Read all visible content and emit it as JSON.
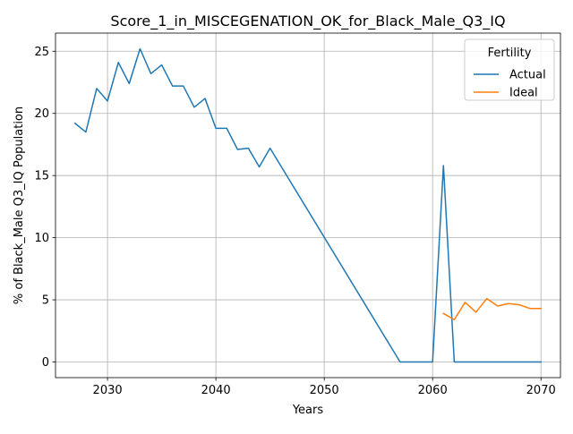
{
  "chart_data": {
    "type": "line",
    "title": "Score_1_in_MISCEGENATION_OK_for_Black_Male_Q3_IQ",
    "xlabel": "Years",
    "ylabel": "% of Black_Male Q3_IQ Population",
    "xlim": [
      2025.2,
      2071.8
    ],
    "ylim": [
      -1.26,
      26.46
    ],
    "xticks": [
      2030,
      2040,
      2050,
      2060,
      2070
    ],
    "yticks": [
      0,
      5,
      10,
      15,
      20,
      25
    ],
    "grid": true,
    "legend": {
      "title": "Fertility",
      "placement": "top-right"
    },
    "series": [
      {
        "name": "Actual",
        "color": "#1f77b4",
        "points": [
          [
            2027,
            19.2
          ],
          [
            2028,
            18.5
          ],
          [
            2029,
            22.0
          ],
          [
            2030,
            21.0
          ],
          [
            2031,
            24.1
          ],
          [
            2032,
            22.4
          ],
          [
            2033,
            25.2
          ],
          [
            2034,
            23.2
          ],
          [
            2035,
            23.9
          ],
          [
            2036,
            22.2
          ],
          [
            2037,
            22.2
          ],
          [
            2038,
            20.5
          ],
          [
            2039,
            21.2
          ],
          [
            2040,
            18.8
          ],
          [
            2041,
            18.8
          ],
          [
            2042,
            17.1
          ],
          [
            2043,
            17.2
          ],
          [
            2044,
            15.7
          ],
          [
            2045,
            17.2
          ],
          [
            2057,
            0
          ],
          [
            2060,
            0
          ],
          [
            2061,
            15.8
          ],
          [
            2062,
            0
          ],
          [
            2070,
            0
          ]
        ]
      },
      {
        "name": "Ideal",
        "color": "#ff7f0e",
        "points": [
          [
            2061,
            3.9
          ],
          [
            2062,
            3.4
          ],
          [
            2063,
            4.8
          ],
          [
            2064,
            4.0
          ],
          [
            2065,
            5.1
          ],
          [
            2066,
            4.5
          ],
          [
            2067,
            4.7
          ],
          [
            2068,
            4.6
          ],
          [
            2069,
            4.3
          ],
          [
            2070,
            4.3
          ]
        ]
      }
    ]
  }
}
